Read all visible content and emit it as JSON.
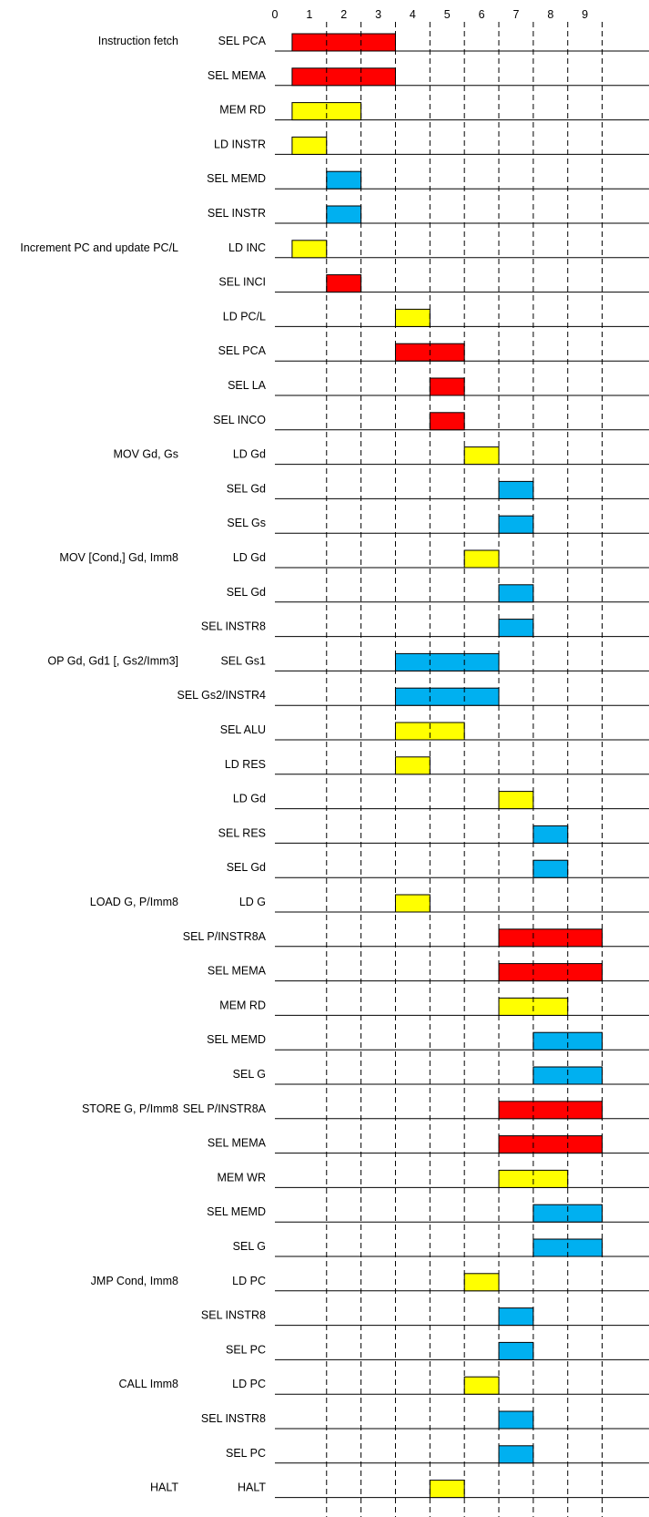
{
  "time_ticks": [
    "0",
    "1",
    "2",
    "3",
    "4",
    "5",
    "6",
    "7",
    "8",
    "9"
  ],
  "colors": {
    "red": "#ff0000",
    "yellow": "#ffff00",
    "blue": "#00b0f0",
    "outline": "#000000",
    "line": "#000000"
  },
  "rows": [
    {
      "group": "Instruction fetch",
      "signal": "SEL PCA",
      "start": 0.5,
      "end": 3.5,
      "color": "red"
    },
    {
      "group": "",
      "signal": "SEL MEMA",
      "start": 0.5,
      "end": 3.5,
      "color": "red"
    },
    {
      "group": "",
      "signal": "MEM RD",
      "start": 0.5,
      "end": 2.5,
      "color": "yellow"
    },
    {
      "group": "",
      "signal": "LD INSTR",
      "start": 0.5,
      "end": 1.5,
      "color": "yellow"
    },
    {
      "group": "",
      "signal": "SEL MEMD",
      "start": 1.5,
      "end": 2.5,
      "color": "blue"
    },
    {
      "group": "",
      "signal": "SEL INSTR",
      "start": 1.5,
      "end": 2.5,
      "color": "blue"
    },
    {
      "group": "Increment PC and update PC/L",
      "signal": "LD INC",
      "start": 0.5,
      "end": 1.5,
      "color": "yellow"
    },
    {
      "group": "",
      "signal": "SEL INCI",
      "start": 1.5,
      "end": 2.5,
      "color": "red"
    },
    {
      "group": "",
      "signal": "LD PC/L",
      "start": 3.5,
      "end": 4.5,
      "color": "yellow"
    },
    {
      "group": "",
      "signal": "SEL PCA",
      "start": 3.5,
      "end": 5.5,
      "color": "red"
    },
    {
      "group": "",
      "signal": "SEL LA",
      "start": 4.5,
      "end": 5.5,
      "color": "red"
    },
    {
      "group": "",
      "signal": "SEL INCO",
      "start": 4.5,
      "end": 5.5,
      "color": "red"
    },
    {
      "group": "MOV Gd, Gs",
      "signal": "LD Gd",
      "start": 5.5,
      "end": 6.5,
      "color": "yellow"
    },
    {
      "group": "",
      "signal": "SEL Gd",
      "start": 6.5,
      "end": 7.5,
      "color": "blue"
    },
    {
      "group": "",
      "signal": "SEL Gs",
      "start": 6.5,
      "end": 7.5,
      "color": "blue"
    },
    {
      "group": "MOV [Cond,] Gd, Imm8",
      "signal": "LD Gd",
      "start": 5.5,
      "end": 6.5,
      "color": "yellow"
    },
    {
      "group": "",
      "signal": "SEL Gd",
      "start": 6.5,
      "end": 7.5,
      "color": "blue"
    },
    {
      "group": "",
      "signal": "SEL INSTR8",
      "start": 6.5,
      "end": 7.5,
      "color": "blue"
    },
    {
      "group": "OP Gd, Gd1 [, Gs2/Imm3]",
      "signal": "SEL Gs1",
      "start": 3.5,
      "end": 6.5,
      "color": "blue"
    },
    {
      "group": "",
      "signal": "SEL Gs2/INSTR4",
      "start": 3.5,
      "end": 6.5,
      "color": "blue"
    },
    {
      "group": "",
      "signal": "SEL ALU",
      "start": 3.5,
      "end": 5.5,
      "color": "yellow"
    },
    {
      "group": "",
      "signal": "LD RES",
      "start": 3.5,
      "end": 4.5,
      "color": "yellow"
    },
    {
      "group": "",
      "signal": "LD Gd",
      "start": 6.5,
      "end": 7.5,
      "color": "yellow"
    },
    {
      "group": "",
      "signal": "SEL RES",
      "start": 7.5,
      "end": 8.5,
      "color": "blue"
    },
    {
      "group": "",
      "signal": "SEL Gd",
      "start": 7.5,
      "end": 8.5,
      "color": "blue"
    },
    {
      "group": "LOAD G, P/Imm8",
      "signal": "LD G",
      "start": 3.5,
      "end": 4.5,
      "color": "yellow"
    },
    {
      "group": "",
      "signal": "SEL P/INSTR8A",
      "start": 6.5,
      "end": 9.5,
      "color": "red"
    },
    {
      "group": "",
      "signal": "SEL MEMA",
      "start": 6.5,
      "end": 9.5,
      "color": "red"
    },
    {
      "group": "",
      "signal": "MEM RD",
      "start": 6.5,
      "end": 8.5,
      "color": "yellow"
    },
    {
      "group": "",
      "signal": "SEL MEMD",
      "start": 7.5,
      "end": 9.5,
      "color": "blue"
    },
    {
      "group": "",
      "signal": "SEL G",
      "start": 7.5,
      "end": 9.5,
      "color": "blue"
    },
    {
      "group": "STORE G, P/Imm8",
      "signal": "SEL P/INSTR8A",
      "start": 6.5,
      "end": 9.5,
      "color": "red"
    },
    {
      "group": "",
      "signal": "SEL MEMA",
      "start": 6.5,
      "end": 9.5,
      "color": "red"
    },
    {
      "group": "",
      "signal": "MEM WR",
      "start": 6.5,
      "end": 8.5,
      "color": "yellow"
    },
    {
      "group": "",
      "signal": "SEL MEMD",
      "start": 7.5,
      "end": 9.5,
      "color": "blue"
    },
    {
      "group": "",
      "signal": "SEL G",
      "start": 7.5,
      "end": 9.5,
      "color": "blue"
    },
    {
      "group": "JMP Cond, Imm8",
      "signal": "LD PC",
      "start": 5.5,
      "end": 6.5,
      "color": "yellow"
    },
    {
      "group": "",
      "signal": "SEL INSTR8",
      "start": 6.5,
      "end": 7.5,
      "color": "blue"
    },
    {
      "group": "",
      "signal": "SEL PC",
      "start": 6.5,
      "end": 7.5,
      "color": "blue"
    },
    {
      "group": "CALL Imm8",
      "signal": "LD PC",
      "start": 5.5,
      "end": 6.5,
      "color": "yellow"
    },
    {
      "group": "",
      "signal": "SEL INSTR8",
      "start": 6.5,
      "end": 7.5,
      "color": "blue"
    },
    {
      "group": "",
      "signal": "SEL PC",
      "start": 6.5,
      "end": 7.5,
      "color": "blue"
    },
    {
      "group": "HALT",
      "signal": "HALT",
      "start": 4.5,
      "end": 5.5,
      "color": "yellow"
    }
  ]
}
